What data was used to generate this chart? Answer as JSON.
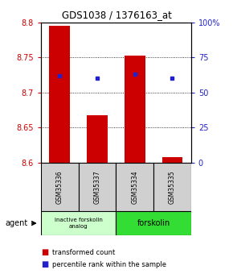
{
  "title": "GDS1038 / 1376163_at",
  "samples": [
    "GSM35336",
    "GSM35337",
    "GSM35334",
    "GSM35335"
  ],
  "bar_values": [
    8.795,
    8.668,
    8.752,
    8.608
  ],
  "bar_base": 8.6,
  "percentile_pct": [
    62,
    60,
    63,
    60
  ],
  "ylim_min": 8.6,
  "ylim_max": 8.8,
  "yticks": [
    8.6,
    8.65,
    8.7,
    8.75,
    8.8
  ],
  "right_ytick_labels": [
    "0",
    "25",
    "50",
    "75",
    "100%"
  ],
  "bar_color": "#cc0000",
  "dot_color": "#2222cc",
  "group1_label": "inactive forskolin\nanalog",
  "group2_label": "forskolin",
  "group1_color": "#ccffcc",
  "group2_color": "#33dd33",
  "legend_red": "transformed count",
  "legend_blue": "percentile rank within the sample",
  "bar_width": 0.55,
  "background_color": "#ffffff"
}
